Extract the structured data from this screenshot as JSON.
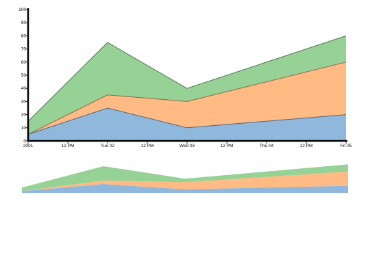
{
  "chart_data": [
    {
      "type": "area",
      "stacked": true,
      "x": [
        "2001-01-01T00:00",
        "2001-01-02T00:00",
        "2001-01-03T00:00",
        "2001-01-05T00:00"
      ],
      "x_tick_labels": [
        "2001",
        "12 PM",
        "Tue 02",
        "12 PM",
        "Wed 03",
        "12 PM",
        "Thu 04",
        "12 PM",
        "Fri 05"
      ],
      "y_ticks": [
        0,
        10,
        20,
        30,
        40,
        50,
        60,
        70,
        80,
        90,
        100
      ],
      "ylim": [
        0,
        100
      ],
      "grid": false,
      "series": [
        {
          "values": [
            5,
            25,
            10,
            20
          ],
          "color": "#8fb8dc"
        },
        {
          "values": [
            0,
            10,
            20,
            40
          ],
          "color": "#ffbb83"
        },
        {
          "values": [
            10,
            40,
            10,
            20
          ],
          "color": "#96d195"
        }
      ]
    },
    {
      "type": "area",
      "role": "context overview",
      "stacked": true,
      "x": [
        "2001-01-01T00:00",
        "2001-01-02T00:00",
        "2001-01-03T00:00",
        "2001-01-05T00:00"
      ],
      "series": [
        {
          "values": [
            5,
            25,
            10,
            20
          ],
          "color": "#8fb8dc"
        },
        {
          "values": [
            0,
            10,
            20,
            40
          ],
          "color": "#ffbb83"
        },
        {
          "values": [
            10,
            40,
            10,
            20
          ],
          "color": "#96d195"
        }
      ]
    }
  ]
}
